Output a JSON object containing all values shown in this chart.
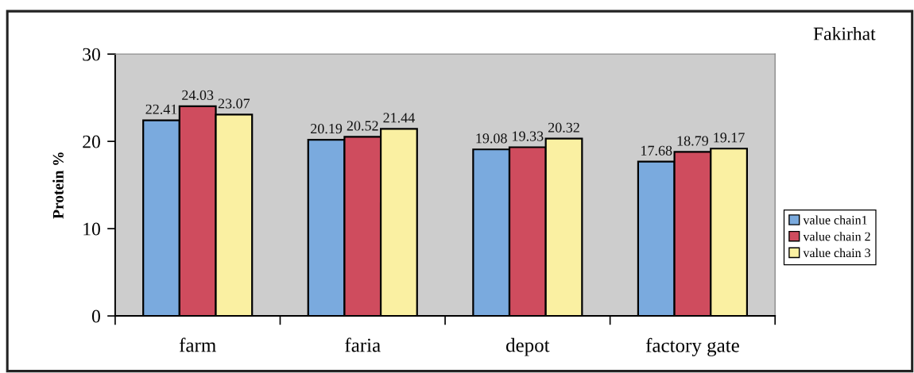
{
  "chart_data": {
    "type": "bar",
    "title": "Fakirhat",
    "ylabel": "Protein %",
    "categories": [
      "farm",
      "faria",
      "depot",
      "factory gate"
    ],
    "series": [
      {
        "name": "value chain1",
        "color": "#7aaade",
        "values": [
          22.41,
          20.19,
          19.08,
          17.68
        ]
      },
      {
        "name": "value chain 2",
        "color": "#cf4c5e",
        "values": [
          24.03,
          20.52,
          19.33,
          18.79
        ]
      },
      {
        "name": "value chain 3",
        "color": "#faf0a2",
        "values": [
          23.07,
          21.44,
          20.32,
          19.17
        ]
      }
    ],
    "ylim": [
      0,
      30
    ],
    "yticks": [
      0,
      10,
      20,
      30
    ],
    "grid": false,
    "legend": "right",
    "data_labels": true
  }
}
